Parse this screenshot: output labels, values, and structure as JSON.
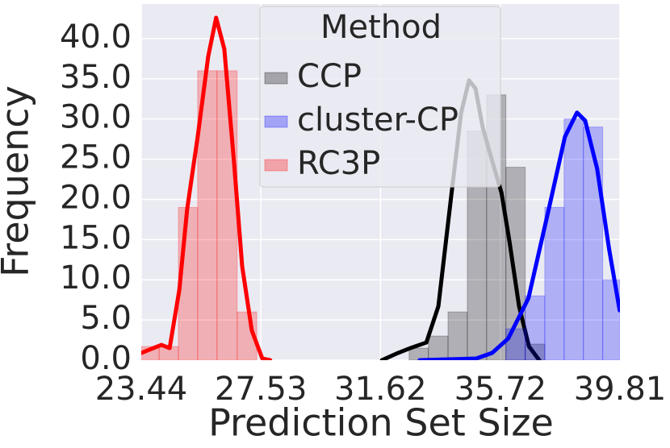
{
  "chart_data": {
    "type": "histogram",
    "xlabel": "Prediction Set Size",
    "ylabel": "Frequency",
    "legend_title": "Method",
    "legend": "upper center",
    "grid": true,
    "background": "#eaeaf2",
    "xlim": [
      23.44,
      39.81
    ],
    "xticks": [
      23.44,
      27.53,
      31.62,
      35.72,
      39.81
    ],
    "ylim": [
      0,
      44.3
    ],
    "yticks": [
      {
        "value": 0,
        "label": "0.0"
      },
      {
        "value": 5,
        "label": "5.0"
      },
      {
        "value": 10,
        "label": "10.0"
      },
      {
        "value": 15,
        "label": "15.0"
      },
      {
        "value": 20,
        "label": "20.0"
      },
      {
        "value": 25,
        "label": "25.0"
      },
      {
        "value": 30,
        "label": "30.0"
      },
      {
        "value": 35,
        "label": "35.0"
      },
      {
        "value": 40,
        "label": "40.0"
      }
    ],
    "series": [
      {
        "name": "CCP",
        "color": "#000000",
        "bins": [
          32.6,
          33.26,
          33.93,
          34.59,
          35.25,
          35.91,
          36.57,
          37.24
        ],
        "values": [
          1.5,
          3,
          6,
          28.5,
          33,
          24,
          2
        ],
        "kde_x": [
          31.67,
          32.22,
          32.64,
          33.19,
          33.6,
          34.02,
          34.38,
          34.65,
          34.87,
          35.12,
          35.4,
          35.76,
          36.03,
          36.36,
          36.7,
          37.05
        ],
        "kde_y": [
          0,
          0.9,
          1.5,
          2.2,
          6.7,
          19.8,
          30.8,
          34.8,
          33.8,
          28.9,
          25.3,
          20.8,
          14.8,
          6.7,
          1.7,
          0
        ]
      },
      {
        "name": "cluster-CP",
        "color": "#0000ff",
        "bins": [
          35.91,
          36.57,
          37.24,
          37.9,
          38.56,
          39.22,
          39.81
        ],
        "values": [
          3.9,
          8,
          19,
          30,
          29,
          10
        ],
        "kde_x": [
          32.96,
          34.89,
          35.44,
          35.99,
          36.68,
          37.37,
          37.93,
          38.34,
          38.62,
          39.03,
          39.44,
          39.8
        ],
        "kde_y": [
          0,
          0.2,
          0.9,
          2.7,
          7.7,
          18.7,
          27.8,
          30.8,
          29.8,
          23.8,
          13.8,
          6.2
        ]
      },
      {
        "name": "RC3P",
        "color": "#ff0000",
        "bins": [
          23.44,
          24.05,
          24.71,
          25.37,
          26.03,
          26.72,
          27.39
        ],
        "values": [
          1.7,
          1.7,
          19,
          36,
          36,
          6
        ],
        "kde_x": [
          23.44,
          23.85,
          24.13,
          24.41,
          24.74,
          25.01,
          25.37,
          25.73,
          26.0,
          26.28,
          26.61,
          26.89,
          27.22,
          27.58,
          27.85
        ],
        "kde_y": [
          0.9,
          1.5,
          1.9,
          1.5,
          8.7,
          18.8,
          27.8,
          37.8,
          42.6,
          38.7,
          24.7,
          11.7,
          3.7,
          0.2,
          0
        ]
      }
    ]
  }
}
